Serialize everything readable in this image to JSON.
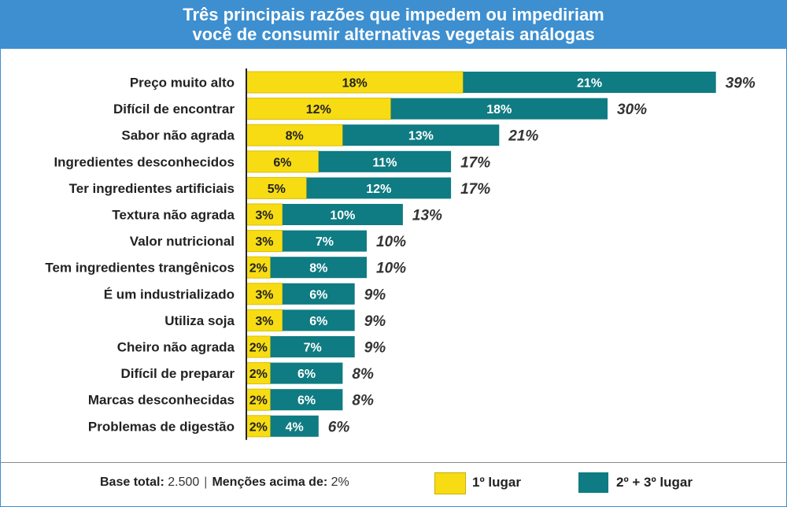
{
  "title_line1": "Três principais razões que impedem ou impediriam",
  "title_line2": "você de consumir alternativas vegetais análogas",
  "colors": {
    "header": "#3d8fd0",
    "first": "#f7dc14",
    "second_third": "#0f7b82"
  },
  "chart_data": {
    "type": "bar",
    "orientation": "horizontal",
    "stacked": true,
    "categories": [
      "Preço muito alto",
      "Difícil de encontrar",
      "Sabor não agrada",
      "Ingredientes desconhecidos",
      "Ter ingredientes artificiais",
      "Textura não agrada",
      "Valor nutricional",
      "Tem ingredientes trangênicos",
      "É um industrializado",
      "Utiliza soja",
      "Cheiro não agrada",
      "Difícil de preparar",
      "Marcas desconhecidas",
      "Problemas de digestão"
    ],
    "series": [
      {
        "name": "1º lugar",
        "values": [
          18,
          12,
          8,
          6,
          5,
          3,
          3,
          2,
          3,
          3,
          2,
          2,
          2,
          2
        ]
      },
      {
        "name": "2º + 3º lugar",
        "values": [
          21,
          18,
          13,
          11,
          12,
          10,
          7,
          8,
          6,
          6,
          7,
          6,
          6,
          4
        ]
      }
    ],
    "totals": [
      39,
      30,
      21,
      17,
      17,
      13,
      10,
      10,
      9,
      9,
      9,
      8,
      8,
      6
    ],
    "value_suffix": "%",
    "xlim": [
      0,
      40
    ],
    "grid": false,
    "legend_position": "bottom"
  },
  "footer": {
    "base_label": "Base total:",
    "base_value": "2.500",
    "separator": "|",
    "mentions_label": "Menções acima de:",
    "mentions_value": "2%"
  }
}
